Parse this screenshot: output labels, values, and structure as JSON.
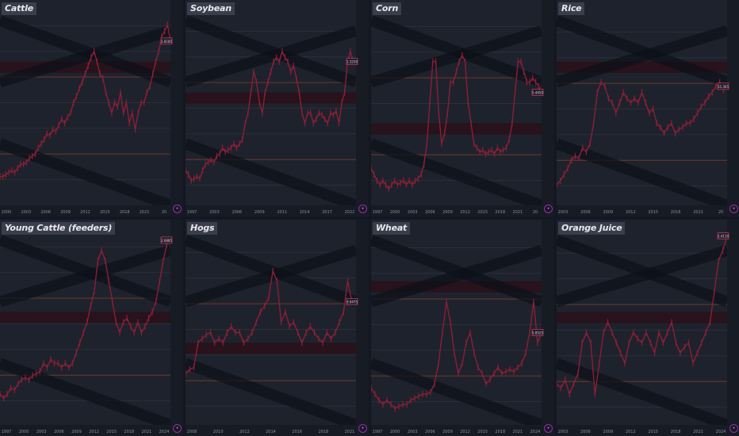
{
  "colors": {
    "background": "#1e222d",
    "border": "#131722",
    "candle": "#8a1f35",
    "channel": "#0c1018",
    "level_line": "#6d3a2a",
    "price_box": "#2a0f18",
    "price_label_border": "#e63d6c",
    "title_bg": "#3a3e4a"
  },
  "chart_data": [
    {
      "type": "line",
      "title": "Cattle",
      "x_labels": [
        "2000",
        "2003",
        "2006",
        "2009",
        "2012",
        "2015",
        "2018",
        "2021",
        "20"
      ],
      "series": [
        {
          "values": [
            0.86,
            0.86,
            0.85,
            0.84,
            0.83,
            0.84,
            0.82,
            0.8,
            0.8,
            0.79,
            0.77,
            0.76,
            0.75,
            0.72,
            0.7,
            0.68,
            0.65,
            0.66,
            0.63,
            0.64,
            0.61,
            0.58,
            0.6,
            0.57,
            0.55,
            0.5,
            0.47,
            0.43,
            0.4,
            0.36,
            0.32,
            0.28,
            0.25,
            0.3,
            0.36,
            0.38,
            0.45,
            0.5,
            0.55,
            0.5,
            0.52,
            0.45,
            0.55,
            0.5,
            0.6,
            0.55,
            0.63,
            0.55,
            0.5,
            0.5,
            0.45,
            0.42,
            0.36,
            0.3,
            0.25,
            0.18,
            0.15,
            0.12,
            0.2
          ]
        }
      ],
      "price_label": "1.8185"
    },
    {
      "type": "line",
      "title": "Soybean",
      "x_labels": [
        "1997",
        "2003",
        "2006",
        "2009",
        "2011",
        "2014",
        "2017",
        "2022"
      ],
      "series": [
        {
          "values": [
            0.83,
            0.85,
            0.88,
            0.87,
            0.86,
            0.87,
            0.83,
            0.8,
            0.79,
            0.78,
            0.79,
            0.76,
            0.75,
            0.72,
            0.74,
            0.73,
            0.72,
            0.7,
            0.72,
            0.7,
            0.68,
            0.6,
            0.55,
            0.45,
            0.35,
            0.4,
            0.5,
            0.55,
            0.45,
            0.4,
            0.35,
            0.3,
            0.28,
            0.3,
            0.25,
            0.28,
            0.3,
            0.35,
            0.32,
            0.38,
            0.45,
            0.55,
            0.6,
            0.55,
            0.55,
            0.6,
            0.58,
            0.55,
            0.56,
            0.58,
            0.6,
            0.55,
            0.56,
            0.54,
            0.6,
            0.5,
            0.45,
            0.3,
            0.25,
            0.3,
            0.3
          ]
        }
      ],
      "price_label": "1.3250"
    },
    {
      "type": "line",
      "title": "Corn",
      "x_labels": [
        "1997",
        "2000",
        "2003",
        "2006",
        "2009",
        "2012",
        "2015",
        "2018",
        "2021",
        "20"
      ],
      "series": [
        {
          "values": [
            0.82,
            0.85,
            0.88,
            0.9,
            0.88,
            0.9,
            0.92,
            0.9,
            0.88,
            0.9,
            0.89,
            0.88,
            0.9,
            0.88,
            0.9,
            0.88,
            0.87,
            0.85,
            0.8,
            0.7,
            0.5,
            0.3,
            0.3,
            0.55,
            0.7,
            0.65,
            0.55,
            0.4,
            0.4,
            0.35,
            0.3,
            0.27,
            0.3,
            0.5,
            0.6,
            0.7,
            0.72,
            0.74,
            0.73,
            0.75,
            0.74,
            0.73,
            0.75,
            0.72,
            0.74,
            0.73,
            0.72,
            0.68,
            0.6,
            0.45,
            0.3,
            0.3,
            0.35,
            0.4,
            0.4,
            0.38,
            0.4,
            0.42,
            0.45
          ]
        }
      ],
      "price_label": "5.4450"
    },
    {
      "type": "line",
      "title": "Rice",
      "x_labels": [
        "2003",
        "2006",
        "2009",
        "2012",
        "2015",
        "2018",
        "2021",
        "20"
      ],
      "series": [
        {
          "values": [
            0.9,
            0.88,
            0.85,
            0.82,
            0.78,
            0.76,
            0.77,
            0.72,
            0.74,
            0.7,
            0.6,
            0.45,
            0.4,
            0.42,
            0.48,
            0.5,
            0.55,
            0.5,
            0.45,
            0.48,
            0.5,
            0.48,
            0.5,
            0.45,
            0.5,
            0.55,
            0.53,
            0.6,
            0.62,
            0.65,
            0.62,
            0.6,
            0.65,
            0.63,
            0.62,
            0.6,
            0.6,
            0.58,
            0.55,
            0.52,
            0.5,
            0.47,
            0.45,
            0.42,
            0.4,
            0.44,
            0.42
          ]
        }
      ],
      "price_label": "15.365"
    },
    {
      "type": "line",
      "title": "Young Cattle (feeders)",
      "x_labels": [
        "1997",
        "2000",
        "2003",
        "2006",
        "2009",
        "2012",
        "2015",
        "2018",
        "2021",
        "2024"
      ],
      "series": [
        {
          "values": [
            0.85,
            0.87,
            0.85,
            0.82,
            0.83,
            0.8,
            0.78,
            0.77,
            0.78,
            0.76,
            0.75,
            0.74,
            0.7,
            0.72,
            0.68,
            0.7,
            0.7,
            0.72,
            0.7,
            0.72,
            0.7,
            0.65,
            0.6,
            0.55,
            0.5,
            0.42,
            0.35,
            0.2,
            0.15,
            0.2,
            0.3,
            0.4,
            0.5,
            0.55,
            0.5,
            0.48,
            0.52,
            0.55,
            0.5,
            0.55,
            0.52,
            0.48,
            0.45,
            0.4,
            0.3,
            0.2,
            0.12,
            0.1
          ]
        }
      ],
      "price_label": "2.6885"
    },
    {
      "type": "line",
      "title": "Hogs",
      "x_labels": [
        "2008",
        "2010",
        "2012",
        "2014",
        "2016",
        "2018",
        "2021"
      ],
      "series": [
        {
          "values": [
            0.75,
            0.73,
            0.72,
            0.6,
            0.58,
            0.56,
            0.55,
            0.6,
            0.58,
            0.6,
            0.55,
            0.52,
            0.55,
            0.55,
            0.6,
            0.58,
            0.55,
            0.5,
            0.45,
            0.42,
            0.38,
            0.25,
            0.3,
            0.5,
            0.45,
            0.52,
            0.5,
            0.55,
            0.6,
            0.55,
            0.52,
            0.55,
            0.58,
            0.6,
            0.55,
            0.58,
            0.55,
            0.5,
            0.45,
            0.3,
            0.4,
            0.4
          ]
        }
      ],
      "price_label": "0.9475"
    },
    {
      "type": "line",
      "title": "Wheat",
      "x_labels": [
        "1997",
        "2000",
        "2003",
        "2006",
        "2009",
        "2012",
        "2015",
        "2018",
        "2021",
        "2024"
      ],
      "series": [
        {
          "values": [
            0.82,
            0.85,
            0.88,
            0.9,
            0.88,
            0.9,
            0.92,
            0.91,
            0.9,
            0.9,
            0.88,
            0.87,
            0.86,
            0.85,
            0.85,
            0.84,
            0.8,
            0.7,
            0.55,
            0.4,
            0.5,
            0.65,
            0.75,
            0.7,
            0.6,
            0.55,
            0.65,
            0.72,
            0.75,
            0.8,
            0.78,
            0.75,
            0.72,
            0.75,
            0.74,
            0.73,
            0.74,
            0.72,
            0.7,
            0.65,
            0.55,
            0.4,
            0.6,
            0.55
          ]
        }
      ],
      "price_label": "5.8525"
    },
    {
      "type": "line",
      "title": "Orange Juice",
      "x_labels": [
        "2003",
        "2006",
        "2009",
        "2012",
        "2015",
        "2018",
        "2021",
        "2024"
      ],
      "series": [
        {
          "values": [
            0.8,
            0.82,
            0.78,
            0.85,
            0.8,
            0.75,
            0.6,
            0.55,
            0.6,
            0.85,
            0.7,
            0.55,
            0.5,
            0.55,
            0.6,
            0.65,
            0.7,
            0.6,
            0.55,
            0.58,
            0.6,
            0.55,
            0.6,
            0.65,
            0.55,
            0.6,
            0.55,
            0.5,
            0.6,
            0.65,
            0.62,
            0.6,
            0.7,
            0.65,
            0.6,
            0.55,
            0.5,
            0.35,
            0.2,
            0.15,
            0.08
          ]
        }
      ],
      "price_label": "2.4110"
    }
  ]
}
